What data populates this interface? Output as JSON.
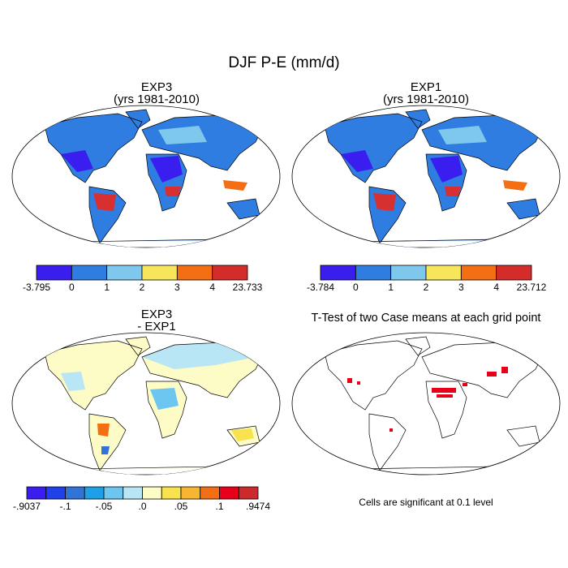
{
  "title": "DJF P-E (mm/d)",
  "panels": [
    {
      "title": "EXP3",
      "subtitle": "(yrs 1981-2010)",
      "colorbar": {
        "colors": [
          "#3a1ef0",
          "#2f7de1",
          "#7ec8ee",
          "#f7e55a",
          "#f46e13",
          "#d42b2b"
        ],
        "labels": [
          "-3.795",
          "0",
          "1",
          "2",
          "3",
          "4",
          "23.733"
        ]
      }
    },
    {
      "title": "EXP1",
      "subtitle": "(yrs 1981-2010)",
      "colorbar": {
        "colors": [
          "#3a1ef0",
          "#2f7de1",
          "#7ec8ee",
          "#f7e55a",
          "#f46e13",
          "#d42b2b"
        ],
        "labels": [
          "-3.784",
          "0",
          "1",
          "2",
          "3",
          "4",
          "23.712"
        ]
      }
    },
    {
      "title": "EXP3",
      "subtitle": "- EXP1",
      "colorbar": {
        "colors": [
          "#3a1ef0",
          "#2040e8",
          "#3273d8",
          "#1ea0e8",
          "#6cc6f0",
          "#b8e6f5",
          "#fdfbc6",
          "#f8e24e",
          "#f8b531",
          "#f46e13",
          "#e8001a",
          "#cd2b2b"
        ],
        "labels": [
          "-.9037",
          "-.1",
          "-.05",
          ".0",
          ".05",
          ".1",
          ".9474"
        ]
      }
    },
    {
      "title": "T-Test of two Case means at each grid point",
      "note": "Cells are significant at 0.1 level"
    }
  ]
}
